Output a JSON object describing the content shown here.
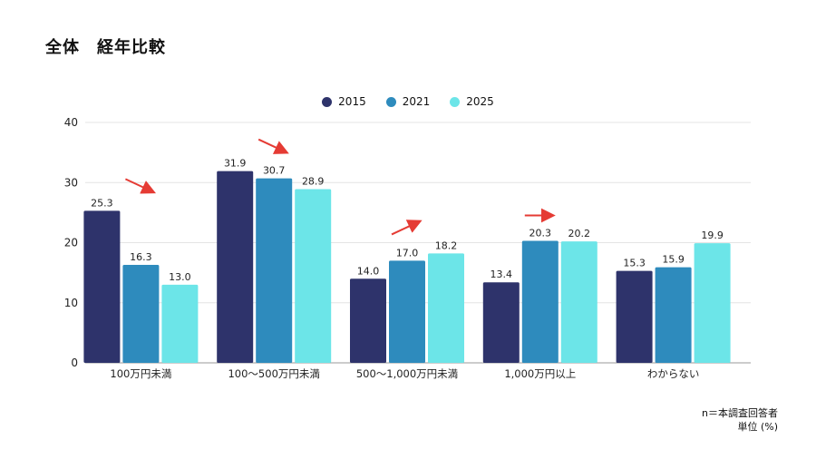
{
  "title": "全体　経年比較",
  "notes": {
    "respondents": "n＝本調査回答者",
    "unit": "単位 (%)"
  },
  "colors": {
    "2015": "#2e336b",
    "2021": "#2e8bbd",
    "2025": "#6ce5e8",
    "arrow": "#e53b34",
    "grid": "#e4e4e4"
  },
  "chart_data": {
    "type": "bar",
    "categories": [
      "100万円未満",
      "100～500万円未満",
      "500～1,000万円未満",
      "1,000万円以上",
      "わからない"
    ],
    "series": [
      {
        "name": "2015",
        "values": [
          25.3,
          31.9,
          14.0,
          13.4,
          15.3
        ]
      },
      {
        "name": "2021",
        "values": [
          16.3,
          30.7,
          17.0,
          20.3,
          15.9
        ]
      },
      {
        "name": "2025",
        "values": [
          13.0,
          28.9,
          18.2,
          20.2,
          19.9
        ]
      }
    ],
    "ylim": [
      0,
      40
    ],
    "yticks": [
      0,
      10,
      20,
      30,
      40
    ],
    "grid": true,
    "legend_position": "top-center",
    "trend_arrows": [
      "down",
      "down",
      "up",
      "flat",
      "none"
    ]
  }
}
